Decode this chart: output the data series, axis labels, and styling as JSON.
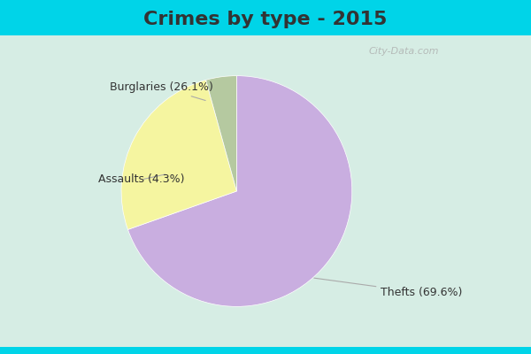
{
  "title": "Crimes by type - 2015",
  "slices": [
    {
      "label": "Thefts (69.6%)",
      "value": 69.6,
      "color": "#c9aee0"
    },
    {
      "label": "Burglaries (26.1%)",
      "value": 26.1,
      "color": "#f5f5a0"
    },
    {
      "label": "Assaults (4.3%)",
      "value": 4.3,
      "color": "#b5c9a0"
    }
  ],
  "background_cyan": "#00d4e8",
  "background_main_top": "#d6ede4",
  "background_main_bottom": "#c8e8d8",
  "title_fontsize": 16,
  "label_fontsize": 9,
  "startangle": 90,
  "watermark": "City-Data.com",
  "title_color": "#333333",
  "label_color": "#333333",
  "line_color": "#aaaaaa"
}
